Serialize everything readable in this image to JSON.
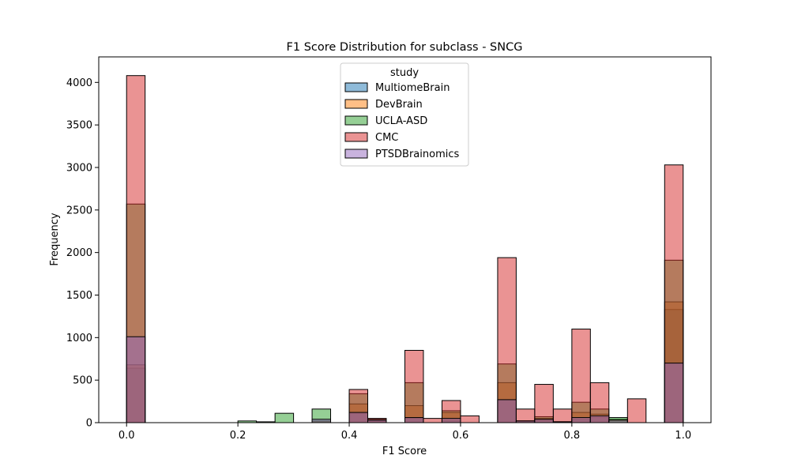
{
  "chart_data": {
    "type": "bar",
    "title": "F1 Score Distribution for subclass - SNCG",
    "xlabel": "F1 Score",
    "ylabel": "Frequency",
    "xlim": [
      -0.05,
      1.05
    ],
    "ylim": [
      0,
      4300
    ],
    "xticks": [
      "0.0",
      "0.2",
      "0.4",
      "0.6",
      "0.8",
      "1.0"
    ],
    "yticks": [
      "0",
      "500",
      "1000",
      "1500",
      "2000",
      "2500",
      "3000",
      "3500",
      "4000"
    ],
    "legend_title": "study",
    "legend_position": "upper-center",
    "bin_width": 0.0333,
    "bins": [
      0.0,
      0.0333,
      0.0667,
      0.1,
      0.1333,
      0.1667,
      0.2,
      0.2333,
      0.2667,
      0.3,
      0.3333,
      0.3667,
      0.4,
      0.4333,
      0.4667,
      0.5,
      0.5333,
      0.5667,
      0.6,
      0.6333,
      0.6667,
      0.7,
      0.7333,
      0.7667,
      0.8,
      0.8333,
      0.8667,
      0.9,
      0.9333,
      0.9667
    ],
    "series": [
      {
        "name": "MultiomeBrain",
        "color": "#1f77b4",
        "values": [
          640,
          0,
          0,
          0,
          0,
          0,
          0,
          0,
          0,
          0,
          10,
          0,
          110,
          20,
          0,
          50,
          0,
          20,
          0,
          0,
          270,
          20,
          30,
          10,
          40,
          60,
          20,
          0,
          0,
          1330
        ]
      },
      {
        "name": "DevBrain",
        "color": "#ff7f0e",
        "values": [
          680,
          0,
          0,
          0,
          0,
          0,
          0,
          0,
          0,
          0,
          20,
          0,
          220,
          20,
          0,
          200,
          0,
          120,
          0,
          0,
          470,
          20,
          50,
          10,
          120,
          100,
          40,
          0,
          0,
          1420
        ]
      },
      {
        "name": "UCLA-ASD",
        "color": "#2ca02c",
        "values": [
          2570,
          0,
          0,
          0,
          0,
          0,
          20,
          10,
          110,
          0,
          160,
          0,
          340,
          40,
          0,
          470,
          0,
          140,
          0,
          0,
          690,
          20,
          70,
          10,
          240,
          160,
          60,
          0,
          0,
          1910
        ]
      },
      {
        "name": "CMC",
        "color": "#d62728",
        "values": [
          4080,
          0,
          0,
          0,
          0,
          0,
          0,
          0,
          0,
          0,
          0,
          0,
          390,
          50,
          0,
          850,
          50,
          260,
          80,
          0,
          1940,
          160,
          450,
          160,
          1100,
          470,
          0,
          280,
          0,
          3030
        ]
      },
      {
        "name": "PTSDBrainomics",
        "color": "#9467bd",
        "values": [
          1010,
          0,
          0,
          0,
          0,
          0,
          0,
          0,
          0,
          0,
          40,
          0,
          120,
          30,
          0,
          60,
          0,
          50,
          0,
          0,
          270,
          20,
          40,
          10,
          60,
          80,
          30,
          0,
          0,
          700
        ]
      }
    ]
  }
}
